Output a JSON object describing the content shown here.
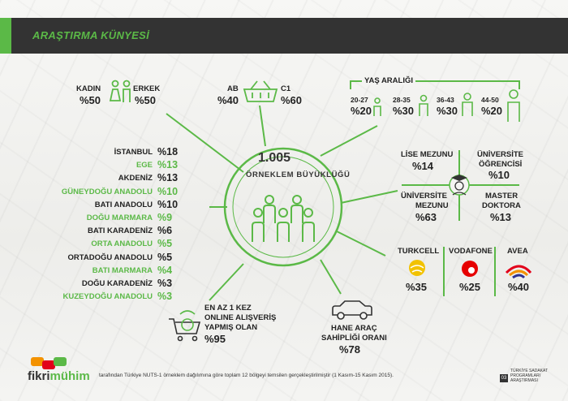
{
  "header": {
    "title": "ARAŞTIRMA KÜNYESİ"
  },
  "sample": {
    "size": "1.005",
    "label": "ÖRNEKLEM BÜYÜKLÜĞÜ"
  },
  "gender": [
    {
      "label": "KADIN",
      "value": "%50"
    },
    {
      "label": "ERKEK",
      "value": "%50"
    }
  ],
  "ses": [
    {
      "label": "AB",
      "value": "%40"
    },
    {
      "label": "C1",
      "value": "%60"
    }
  ],
  "age": {
    "title": "YAŞ ARALIĞI",
    "groups": [
      {
        "label": "20-27",
        "value": "%20"
      },
      {
        "label": "28-35",
        "value": "%30"
      },
      {
        "label": "36-43",
        "value": "%30"
      },
      {
        "label": "44-50",
        "value": "%20"
      }
    ]
  },
  "regions": [
    {
      "name": "İSTANBUL",
      "value": "%18",
      "color": "#222222"
    },
    {
      "name": "EGE",
      "value": "%13",
      "color": "#5bb947"
    },
    {
      "name": "AKDENİZ",
      "value": "%13",
      "color": "#222222"
    },
    {
      "name": "GÜNEYDOĞU ANADOLU",
      "value": "%10",
      "color": "#5bb947"
    },
    {
      "name": "BATI ANADOLU",
      "value": "%10",
      "color": "#222222"
    },
    {
      "name": "DOĞU MARMARA",
      "value": "%9",
      "color": "#5bb947"
    },
    {
      "name": "BATI KARADENİZ",
      "value": "%6",
      "color": "#222222"
    },
    {
      "name": "ORTA ANADOLU",
      "value": "%5",
      "color": "#5bb947"
    },
    {
      "name": "ORTADOĞU ANADOLU",
      "value": "%5",
      "color": "#222222"
    },
    {
      "name": "BATI MARMARA",
      "value": "%4",
      "color": "#5bb947"
    },
    {
      "name": "DOĞU KARADENİZ",
      "value": "%3",
      "color": "#222222"
    },
    {
      "name": "KUZEYDOĞU ANADOLU",
      "value": "%3",
      "color": "#5bb947"
    }
  ],
  "education": [
    {
      "label1": "LİSE MEZUNU",
      "label2": "",
      "value": "%14"
    },
    {
      "label1": "ÜNİVERSİTE",
      "label2": "ÖĞRENCİSİ",
      "value": "%10"
    },
    {
      "label1": "ÜNİVERSİTE",
      "label2": "MEZUNU",
      "value": "%63"
    },
    {
      "label1": "MASTER",
      "label2": "DOKTORA",
      "value": "%13"
    }
  ],
  "operators": [
    {
      "name": "TURKCELL",
      "value": "%35",
      "icon": "turkcell-logo-icon"
    },
    {
      "name": "VODAFONE",
      "value": "%25",
      "icon": "vodafone-logo-icon"
    },
    {
      "name": "AVEA",
      "value": "%40",
      "icon": "avea-logo-icon"
    }
  ],
  "car": {
    "line1": "HANE ARAÇ",
    "line2": "SAHİPLİĞİ ORANI",
    "value": "%78"
  },
  "online": {
    "line1": "EN AZ 1 KEZ",
    "line2": "ONLINE ALIŞVERİŞ",
    "line3": "YAPMIŞ OLAN",
    "value": "%95"
  },
  "footer": {
    "brand_a": "fikri",
    "brand_b": "mühim",
    "text": "tarafından Türkiye NUTS-1 örneklem dağılımına göre toplam 12 bölgeyi temsilen gerçekleştirilmiştir (1 Kasım-15 Kasım 2015).",
    "page": "03",
    "report1": "TÜRKİYE SADAKAT",
    "report2": "PROGRAMLARI",
    "report3": "ARAŞTIRMASI"
  },
  "colors": {
    "accent": "#5bb947",
    "dark": "#333333"
  }
}
